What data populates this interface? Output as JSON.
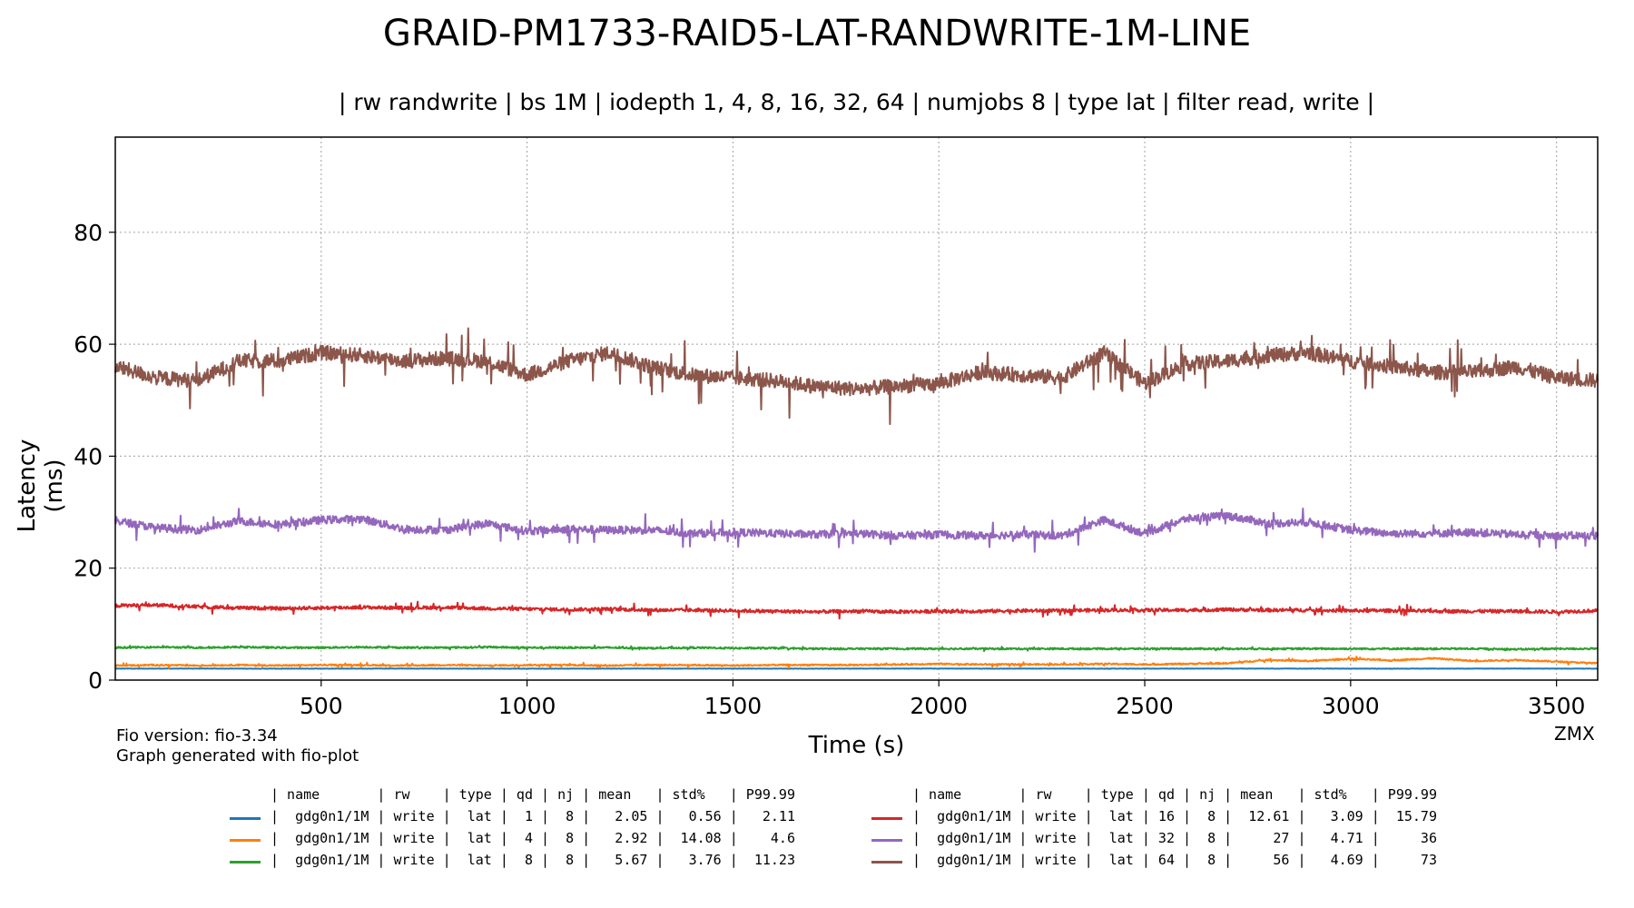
{
  "header": {
    "title": "GRAID-PM1733-RAID5-LAT-RANDWRITE-1M-LINE",
    "subtitle": "| rw randwrite | bs 1M | iodepth 1, 4, 8, 16, 32, 64 | numjobs 8 | type lat | filter read, write |"
  },
  "footer": {
    "fio_version": "Fio version: fio-3.34",
    "generated_with": "Graph generated with fio-plot",
    "corner_tag": "ZMX"
  },
  "legend": {
    "header": "| name       | rw    | type | qd | nj | mean   | std%   | P99.99",
    "rows": [
      {
        "text": "|  gdg0n1/1M | write |  lat |  1 |  8 |   2.05 |   0.56 |   2.11",
        "color": "#1f77b4"
      },
      {
        "text": "|  gdg0n1/1M | write |  lat |  4 |  8 |   2.92 |  14.08 |    4.6",
        "color": "#ff7f0e"
      },
      {
        "text": "|  gdg0n1/1M | write |  lat |  8 |  8 |   5.67 |   3.76 |  11.23",
        "color": "#2ca02c"
      },
      {
        "text": "|  gdg0n1/1M | write |  lat | 16 |  8 |  12.61 |   3.09 |  15.79",
        "color": "#d62728"
      },
      {
        "text": "|  gdg0n1/1M | write |  lat | 32 |  8 |     27 |   4.71 |     36",
        "color": "#9467bd"
      },
      {
        "text": "|  gdg0n1/1M | write |  lat | 64 |  8 |     56 |   4.69 |     73",
        "color": "#8c564b"
      }
    ]
  },
  "chart_data": {
    "type": "line",
    "xlabel": "Time (s)",
    "ylabel": "Latency (ms)",
    "xlim": [
      0,
      3600
    ],
    "ylim": [
      0,
      97
    ],
    "xticks": [
      500,
      1000,
      1500,
      2000,
      2500,
      3000,
      3500
    ],
    "yticks": [
      0,
      20,
      40,
      60,
      80
    ],
    "grid": true,
    "x": [
      0,
      100,
      200,
      300,
      400,
      500,
      600,
      700,
      800,
      900,
      1000,
      1100,
      1200,
      1300,
      1400,
      1500,
      1600,
      1700,
      1800,
      1900,
      2000,
      2100,
      2200,
      2300,
      2400,
      2500,
      2600,
      2700,
      2800,
      2900,
      3000,
      3100,
      3200,
      3300,
      3400,
      3500,
      3600
    ],
    "series": [
      {
        "name": "qd 1",
        "color": "#1f77b4",
        "values": [
          2.05,
          2.05,
          2.06,
          2.05,
          2.04,
          2.05,
          2.05,
          2.06,
          2.05,
          2.05,
          2.04,
          2.05,
          2.05,
          2.06,
          2.05,
          2.05,
          2.05,
          2.04,
          2.05,
          2.05,
          2.06,
          2.05,
          2.05,
          2.05,
          2.04,
          2.05,
          2.05,
          2.06,
          2.05,
          2.05,
          2.05,
          2.04,
          2.05,
          2.05,
          2.06,
          2.05,
          2.05
        ]
      },
      {
        "name": "qd 4",
        "color": "#ff7f0e",
        "values": [
          2.6,
          2.7,
          2.6,
          2.7,
          2.6,
          2.7,
          2.7,
          2.6,
          2.7,
          2.6,
          2.7,
          2.7,
          2.6,
          2.7,
          2.7,
          2.6,
          2.7,
          2.7,
          2.7,
          2.8,
          2.9,
          2.8,
          2.8,
          2.8,
          2.9,
          2.8,
          2.9,
          3.0,
          3.6,
          3.4,
          3.8,
          3.5,
          3.9,
          3.4,
          3.6,
          3.3,
          3.0
        ]
      },
      {
        "name": "qd 8",
        "color": "#2ca02c",
        "values": [
          5.8,
          5.9,
          5.8,
          5.9,
          5.8,
          5.8,
          5.9,
          5.8,
          5.8,
          5.9,
          5.8,
          5.8,
          5.8,
          5.7,
          5.8,
          5.7,
          5.7,
          5.6,
          5.6,
          5.6,
          5.6,
          5.6,
          5.6,
          5.6,
          5.6,
          5.6,
          5.6,
          5.6,
          5.6,
          5.6,
          5.6,
          5.6,
          5.6,
          5.6,
          5.5,
          5.6,
          5.6
        ]
      },
      {
        "name": "qd 16",
        "color": "#d62728",
        "values": [
          13.3,
          13.4,
          13.1,
          12.9,
          12.8,
          12.9,
          13.0,
          12.9,
          13.0,
          12.8,
          12.7,
          12.6,
          12.7,
          12.5,
          12.5,
          12.4,
          12.3,
          12.2,
          12.3,
          12.2,
          12.3,
          12.3,
          12.4,
          12.4,
          12.5,
          12.5,
          12.5,
          12.6,
          12.5,
          12.5,
          12.4,
          12.4,
          12.3,
          12.3,
          12.3,
          12.2,
          12.4
        ]
      },
      {
        "name": "qd 32",
        "color": "#9467bd",
        "values": [
          28.5,
          27.2,
          26.8,
          28.4,
          27.8,
          28.6,
          28.8,
          27.0,
          26.8,
          28.0,
          26.6,
          27.0,
          26.8,
          26.8,
          26.2,
          26.4,
          26.2,
          26.0,
          26.2,
          25.8,
          26.0,
          25.8,
          26.0,
          25.8,
          28.6,
          26.2,
          28.8,
          29.4,
          28.0,
          28.2,
          26.8,
          26.2,
          26.2,
          26.4,
          26.0,
          25.8,
          25.8
        ]
      },
      {
        "name": "qd 64",
        "color": "#8c564b",
        "values": [
          56.0,
          54.0,
          53.5,
          57.0,
          57.0,
          58.5,
          58.0,
          57.0,
          57.5,
          57.0,
          54.5,
          57.0,
          58.5,
          56.0,
          54.5,
          54.0,
          53.5,
          52.5,
          52.0,
          52.5,
          53.0,
          55.0,
          54.5,
          54.0,
          58.5,
          53.0,
          56.5,
          57.0,
          58.0,
          58.5,
          57.0,
          56.0,
          55.0,
          55.0,
          56.0,
          54.0,
          53.5
        ]
      }
    ]
  }
}
